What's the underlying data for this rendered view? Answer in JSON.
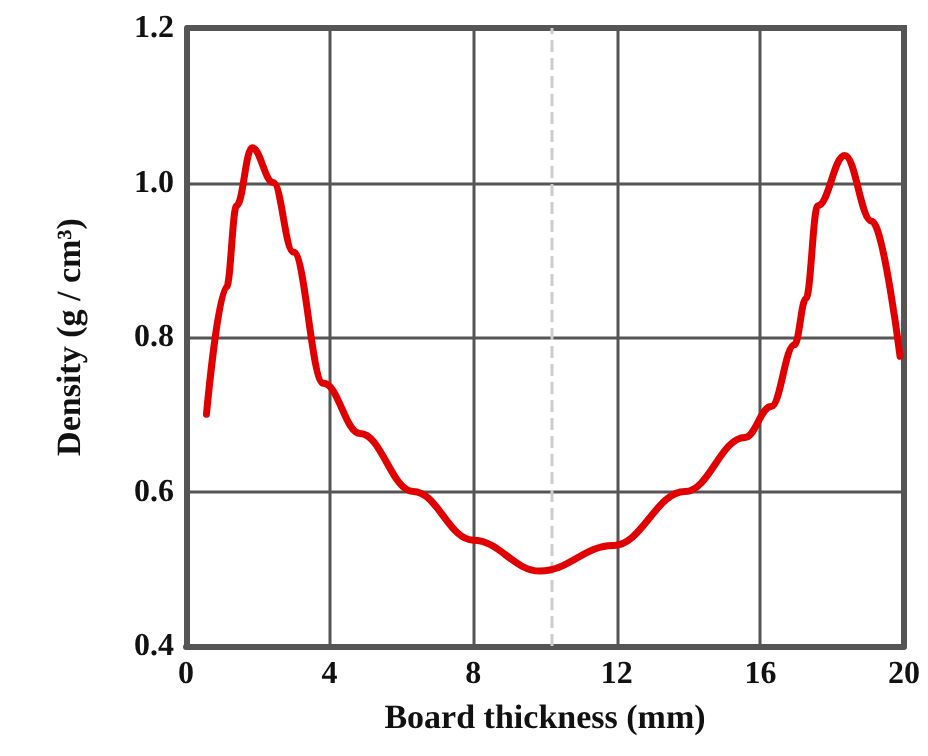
{
  "chart_data": {
    "type": "line",
    "xlabel": "Board thickness (mm)",
    "ylabel": "Density (g / cm³)",
    "x": [
      0.57,
      1.13,
      1.41,
      1.84,
      2.43,
      2.99,
      3.83,
      4.85,
      6.33,
      8.0,
      9.86,
      11.9,
      13.9,
      15.57,
      16.3,
      16.95,
      17.27,
      17.6,
      18.35,
      19.1,
      19.89
    ],
    "series": [
      {
        "color": "#e00000",
        "values": [
          0.7,
          0.865,
          0.97,
          1.045,
          1.0,
          0.91,
          0.74,
          0.675,
          0.6,
          0.537,
          0.497,
          0.53,
          0.6,
          0.67,
          0.71,
          0.79,
          0.85,
          0.97,
          1.035,
          0.95,
          0.775
        ]
      }
    ],
    "xlim": [
      0,
      20
    ],
    "xticks": [
      0,
      4,
      8,
      12,
      16,
      20
    ],
    "ylim": [
      0.4,
      1.2
    ],
    "yticks": [
      0.4,
      0.6,
      0.8,
      {
        "value": 1,
        "label": "1.0"
      },
      1.2
    ],
    "grid": true,
    "marker": "none",
    "line_style": "solid",
    "ref_lines": [
      {
        "axis": "x",
        "value": 10.2,
        "color": "#cccccc",
        "line_style": "dashed"
      }
    ]
  }
}
